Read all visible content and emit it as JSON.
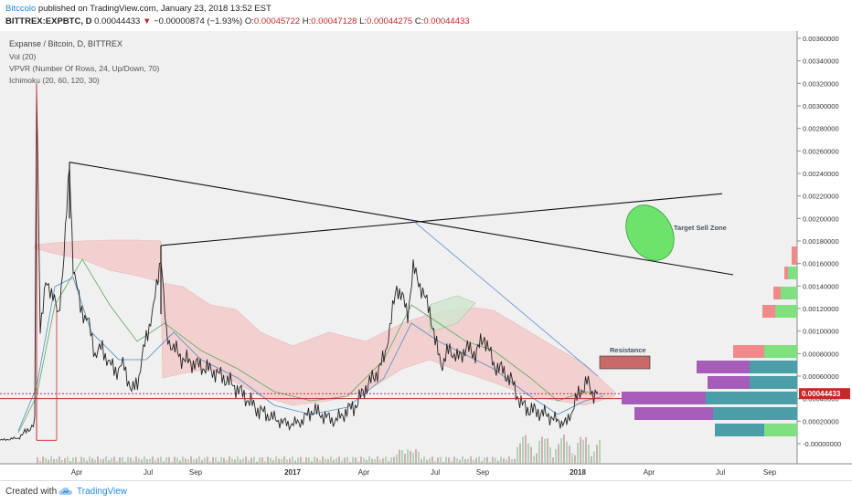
{
  "header": {
    "author": "Bitccolo",
    "published_text": "published on TradingView.com, January 23, 2018 13:52 EST",
    "symbol": "BITTREX:EXPBTC, D",
    "last_price": "0.00044433",
    "change_arrow": "▼",
    "change": "−0.00000874 (−1.93%)",
    "o_label": "O:",
    "o_value": "0.00045722",
    "h_label": "H:",
    "h_value": "0.00047128",
    "l_label": "L:",
    "l_value": "0.00044275",
    "c_label": "C:",
    "c_value": "0.00044433"
  },
  "legend": {
    "title": "Expanse / Bitcoin, D, BITTREX",
    "vol": "Vol (20)",
    "vpvr": "VPVR (Number Of Rows, 24, Up/Down, 70)",
    "ichimoku": "Ichimoku (20, 60, 120, 30)"
  },
  "annotations": {
    "target_sell_zone": "Target Sell Zone",
    "resistance": "Resistance"
  },
  "price_badge": "0.00044433",
  "footer": {
    "created_with": "Created with",
    "brand": "TradingView"
  },
  "colors": {
    "up_candle": "#222222",
    "cloud_fill": "#f4c6c6",
    "red_line": "#c62828",
    "sell_zone": "#6ce46c",
    "resistance_box": "#c96a6a",
    "vpvr_up": "#4a9ea8",
    "vpvr_down": "#a65cb8",
    "vpvr_green": "#7ee07e",
    "vpvr_pink": "#f08a8a"
  },
  "chart_data": {
    "type": "candlestick",
    "x_ticks": [
      "Apr",
      "Jul",
      "Sep",
      "2017",
      "Apr",
      "Jul",
      "Sep",
      "2018",
      "Apr",
      "Jul",
      "Sep"
    ],
    "y_ticks": [
      "0.00360000",
      "0.00340000",
      "0.00320000",
      "0.00300000",
      "0.00280000",
      "0.00260000",
      "0.00240000",
      "0.00220000",
      "0.00200000",
      "0.00180000",
      "0.00160000",
      "0.00140000",
      "0.00120000",
      "0.00100000",
      "0.00080000",
      "0.00060000",
      "0.00040000",
      "0.00020000",
      "-0.00000000"
    ],
    "ylim": [
      -0.0001,
      0.0037
    ],
    "price_series": [
      [
        0,
        3e-05
      ],
      [
        20,
        5e-05
      ],
      [
        30,
        0.00012
      ],
      [
        38,
        0.00018
      ],
      [
        40,
        0.0032
      ],
      [
        44,
        0.00105
      ],
      [
        50,
        0.0014
      ],
      [
        58,
        0.00135
      ],
      [
        64,
        0.0011
      ],
      [
        70,
        0.0017
      ],
      [
        76,
        0.00245
      ],
      [
        80,
        0.0016
      ],
      [
        88,
        0.0012
      ],
      [
        96,
        0.0011
      ],
      [
        104,
        0.0008
      ],
      [
        112,
        0.00085
      ],
      [
        120,
        0.0007
      ],
      [
        128,
        0.00065
      ],
      [
        136,
        0.0007
      ],
      [
        144,
        0.00045
      ],
      [
        152,
        0.0006
      ],
      [
        160,
        0.00095
      ],
      [
        168,
        0.0012
      ],
      [
        176,
        0.00168
      ],
      [
        182,
        0.00095
      ],
      [
        190,
        0.00085
      ],
      [
        200,
        0.00075
      ],
      [
        210,
        0.00072
      ],
      [
        222,
        0.00068
      ],
      [
        234,
        0.00064
      ],
      [
        246,
        0.00058
      ],
      [
        258,
        0.0005
      ],
      [
        270,
        0.0004
      ],
      [
        282,
        0.0003
      ],
      [
        294,
        0.00025
      ],
      [
        306,
        0.0002
      ],
      [
        318,
        0.00017
      ],
      [
        330,
        0.0002
      ],
      [
        342,
        0.0003
      ],
      [
        354,
        0.00025
      ],
      [
        366,
        0.0002
      ],
      [
        378,
        0.00028
      ],
      [
        390,
        0.00035
      ],
      [
        400,
        0.0005
      ],
      [
        410,
        0.0006
      ],
      [
        420,
        0.00075
      ],
      [
        428,
        0.0011
      ],
      [
        434,
        0.0014
      ],
      [
        440,
        0.0013
      ],
      [
        446,
        0.00115
      ],
      [
        452,
        0.00155
      ],
      [
        458,
        0.00145
      ],
      [
        464,
        0.0013
      ],
      [
        470,
        0.0012
      ],
      [
        476,
        0.0009
      ],
      [
        484,
        0.0007
      ],
      [
        492,
        0.00085
      ],
      [
        500,
        0.00075
      ],
      [
        510,
        0.00085
      ],
      [
        520,
        0.0008
      ],
      [
        530,
        0.00095
      ],
      [
        540,
        0.0007
      ],
      [
        550,
        0.00065
      ],
      [
        560,
        0.00055
      ],
      [
        570,
        0.00035
      ],
      [
        580,
        0.0003
      ],
      [
        590,
        0.00028
      ],
      [
        600,
        0.00025
      ],
      [
        610,
        0.0002
      ],
      [
        620,
        0.00018
      ],
      [
        628,
        0.00035
      ],
      [
        636,
        0.00048
      ],
      [
        642,
        0.00055
      ],
      [
        648,
        0.00045
      ],
      [
        654,
        0.00046
      ]
    ],
    "drawn_lines": [
      {
        "from": [
          76,
          0.0025
        ],
        "to": [
          802,
          0.0015
        ]
      },
      {
        "from": [
          176,
          0.00176
        ],
        "to": [
          790,
          0.00222
        ]
      },
      {
        "from": [
          452,
          0.00198
        ],
        "to": [
          654,
          0.0006
        ]
      }
    ],
    "current_price": 0.00044433,
    "support_line": 0.0004
  }
}
